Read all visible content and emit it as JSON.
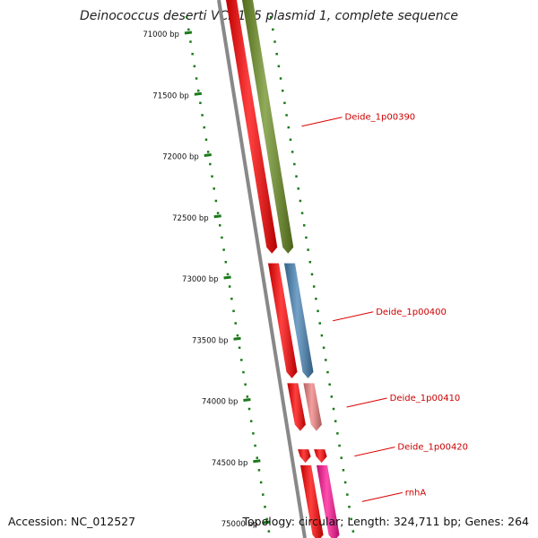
{
  "title": "Deinococcus deserti VCD115 plasmid 1, complete sequence",
  "footer": {
    "accession": "Accession: NC_012527",
    "summary": "Topology: circular; Length: 324,711 bp; Genes: 264"
  },
  "ticks": [
    {
      "label": "71000 bp",
      "bp": 71000
    },
    {
      "label": "71500 bp",
      "bp": 71500
    },
    {
      "label": "72000 bp",
      "bp": 72000
    },
    {
      "label": "72500 bp",
      "bp": 72500
    },
    {
      "label": "73000 bp",
      "bp": 73000
    },
    {
      "label": "73500 bp",
      "bp": 73500
    },
    {
      "label": "74000 bp",
      "bp": 74000
    },
    {
      "label": "74500 bp",
      "bp": 74500
    },
    {
      "label": "75000 bp",
      "bp": 75000
    }
  ],
  "features": [
    {
      "gene": "",
      "kind": "CDS",
      "start": 70720,
      "end": 72800,
      "color": "#ff0000"
    },
    {
      "gene": "Deide_1p00390",
      "kind": "gene",
      "start": 70720,
      "end": 72800,
      "color": "#6b8e23"
    },
    {
      "gene": "",
      "kind": "CDS",
      "start": 72880,
      "end": 73820,
      "color": "#ff0000"
    },
    {
      "gene": "Deide_1p00400",
      "kind": "gene",
      "start": 72880,
      "end": 73820,
      "color": "#4682b4"
    },
    {
      "gene": "",
      "kind": "CDS",
      "start": 73860,
      "end": 74250,
      "color": "#ff0000"
    },
    {
      "gene": "Deide_1p00410",
      "kind": "gene",
      "start": 73860,
      "end": 74250,
      "color": "#f08080"
    },
    {
      "gene": "",
      "kind": "CDS",
      "start": 74400,
      "end": 74510,
      "color": "#ff0000"
    },
    {
      "gene": "Deide_1p00420",
      "kind": "gene",
      "start": 74400,
      "end": 74510,
      "color": "#ff0000"
    },
    {
      "gene": "",
      "kind": "CDS",
      "start": 74530,
      "end": 75150,
      "color": "#ff0000"
    },
    {
      "gene": "rnhA",
      "kind": "gene",
      "start": 74530,
      "end": 75150,
      "color": "#ff1493"
    }
  ],
  "colors": {
    "backbone": "#888888",
    "tick": "#1a7a1a",
    "label_line": "#dd0000",
    "label_text": "#cc0000"
  }
}
